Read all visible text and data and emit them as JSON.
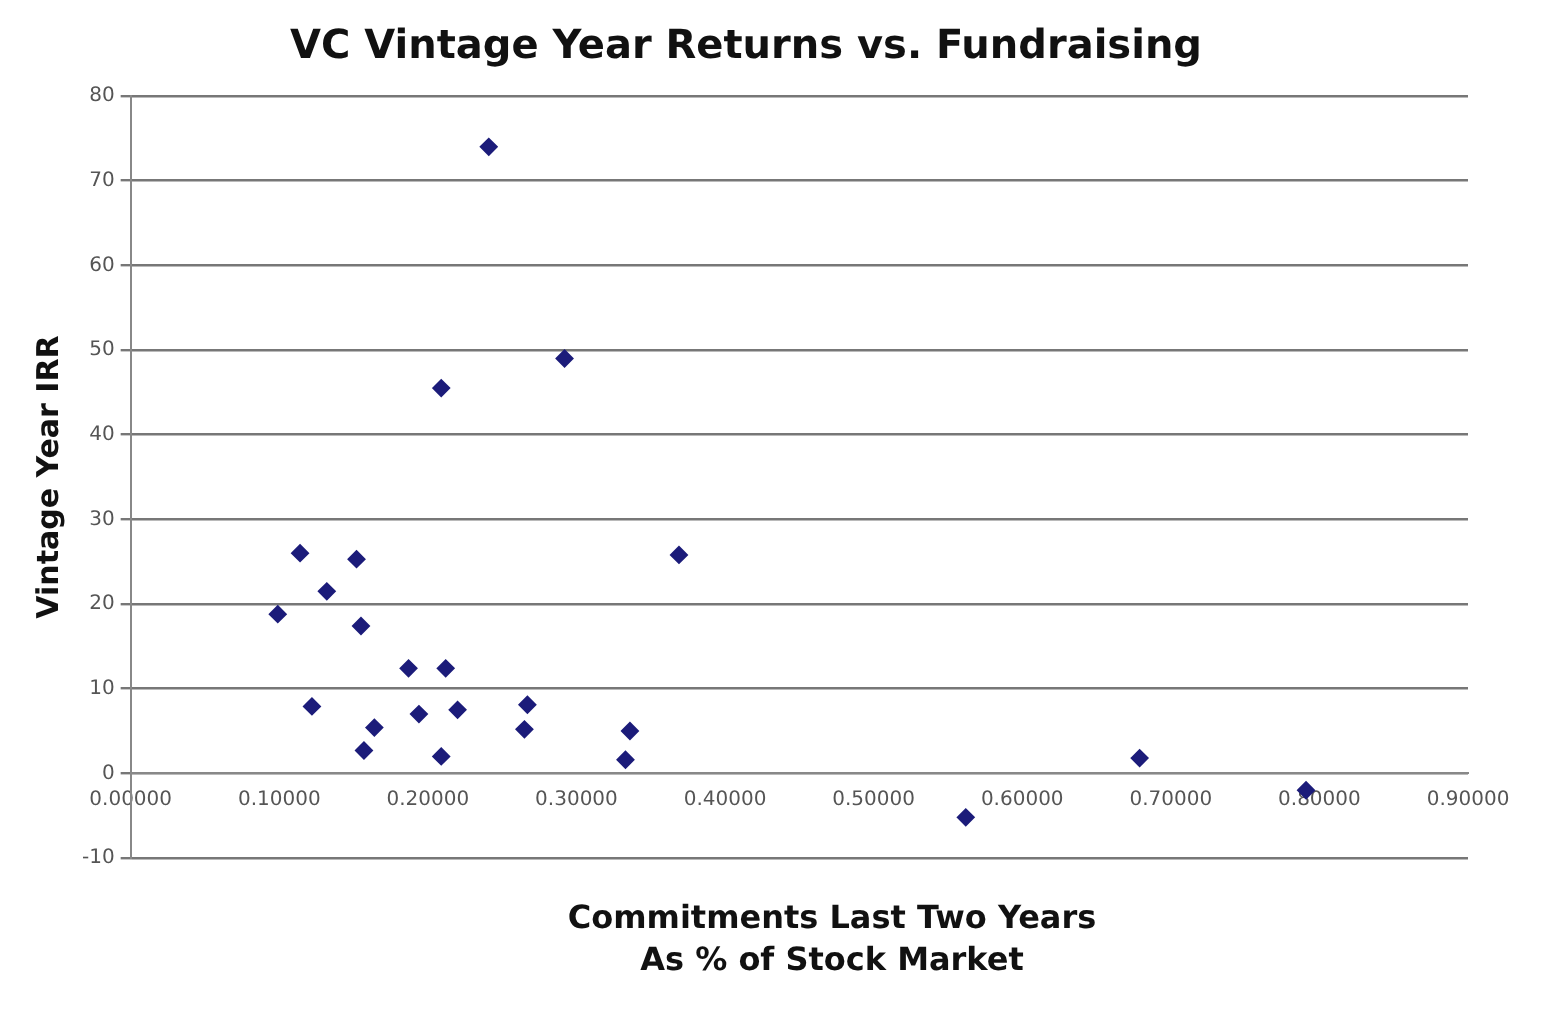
{
  "chart_data": {
    "type": "scatter",
    "title": "VC Vintage Year Returns vs. Fundraising",
    "xlabel": "Commitments Last Two Years\nAs % of Stock Market",
    "ylabel": "Vintage Year IRR",
    "x": [
      0.241,
      0.292,
      0.209,
      0.114,
      0.152,
      0.369,
      0.132,
      0.099,
      0.155,
      0.187,
      0.212,
      0.122,
      0.194,
      0.22,
      0.267,
      0.164,
      0.265,
      0.336,
      0.157,
      0.209,
      0.333,
      0.679,
      0.791,
      0.562
    ],
    "values": [
      74,
      49,
      45.5,
      26,
      25.3,
      25.8,
      21.5,
      18.8,
      17.4,
      12.4,
      12.4,
      7.9,
      7,
      7.5,
      8.1,
      5.4,
      5.2,
      5,
      2.7,
      2,
      1.6,
      1.8,
      -2,
      -5.2
    ],
    "color": "#1c1c7a",
    "marker": "diamond",
    "grid": "y",
    "legend": false,
    "xlim": [
      0,
      0.9
    ],
    "xticks": [
      {
        "value": 0,
        "label": "0.00000"
      },
      {
        "value": 0.1,
        "label": "0.10000"
      },
      {
        "value": 0.2,
        "label": "0.20000"
      },
      {
        "value": 0.3,
        "label": "0.30000"
      },
      {
        "value": 0.4,
        "label": "0.40000"
      },
      {
        "value": 0.5,
        "label": "0.50000"
      },
      {
        "value": 0.6,
        "label": "0.60000"
      },
      {
        "value": 0.7,
        "label": "0.70000"
      },
      {
        "value": 0.8,
        "label": "0.80000"
      },
      {
        "value": 0.9,
        "label": "0.90000"
      }
    ],
    "ylim": [
      -10,
      80
    ],
    "yticks": [
      -10,
      0,
      10,
      20,
      30,
      40,
      50,
      60,
      70,
      80
    ]
  }
}
